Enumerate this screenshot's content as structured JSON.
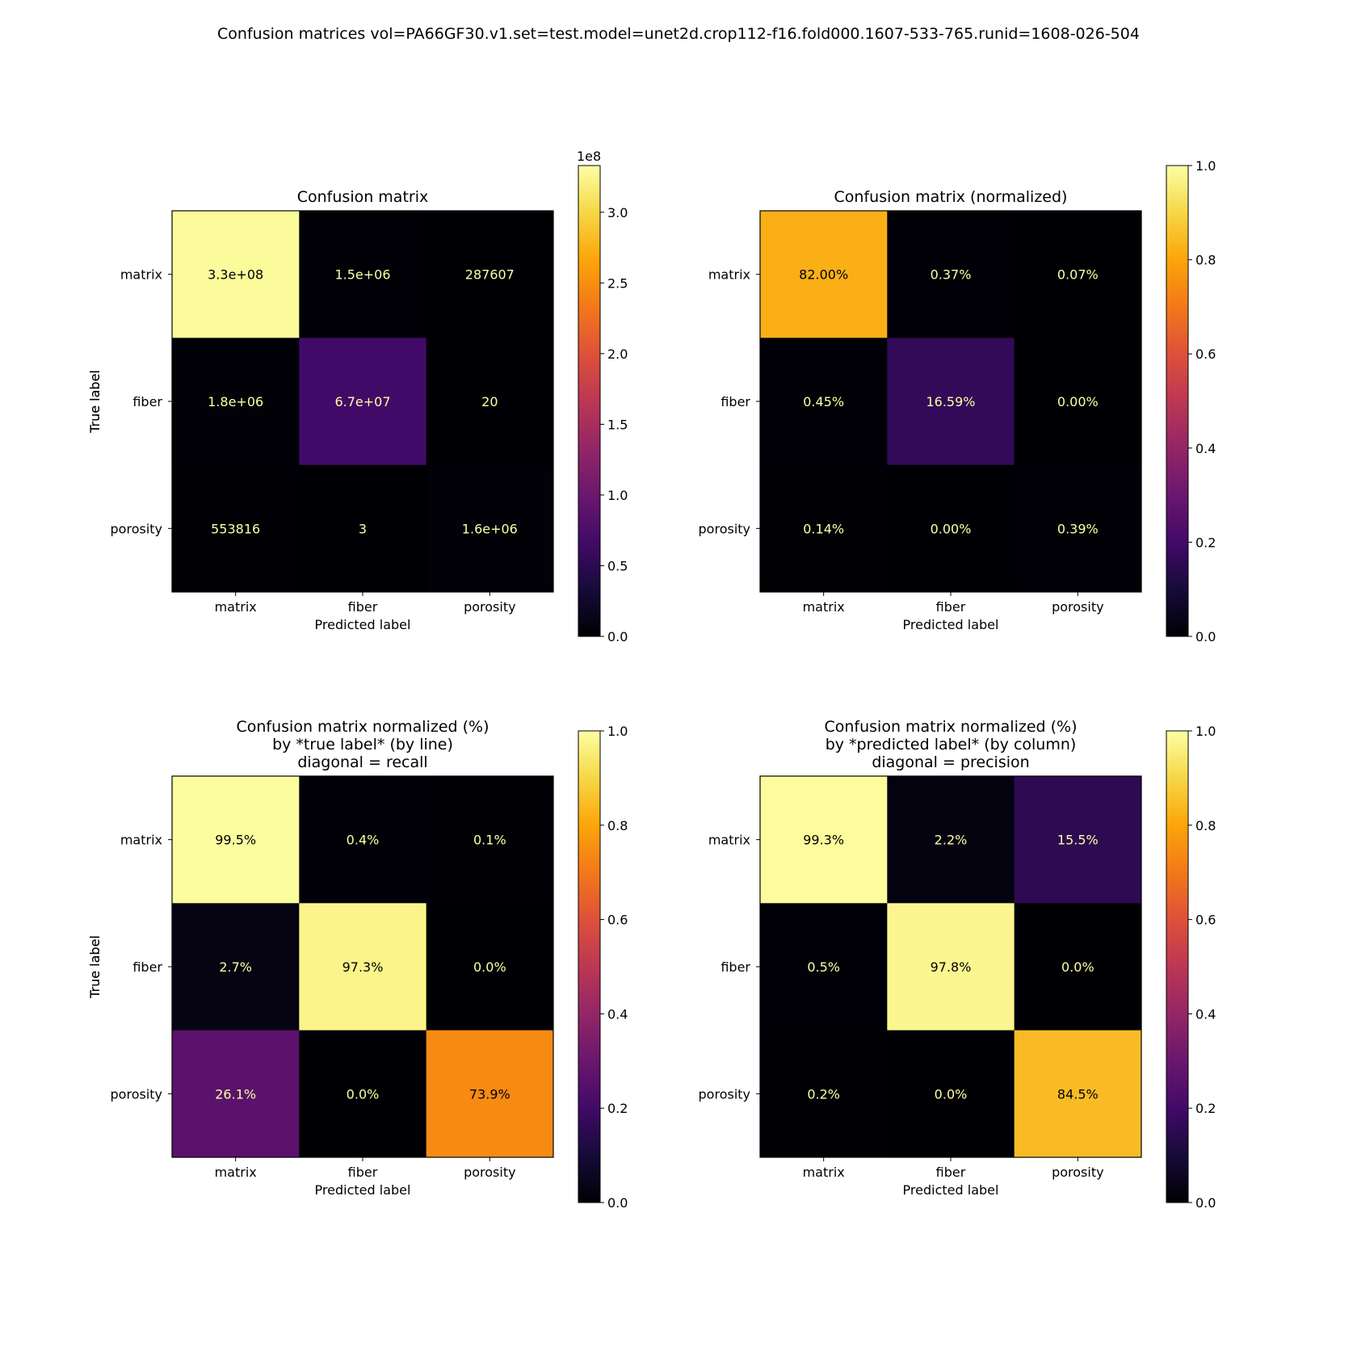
{
  "figure": {
    "suptitle": "Confusion matrices vol=PA66GF30.v1.set=test.model=unet2d.crop112-f16.fold000.1607-533-765.runid=1608-026-504"
  },
  "colormap": {
    "name": "inferno",
    "stops": [
      "#000004",
      "#160b39",
      "#420a68",
      "#6a176e",
      "#932667",
      "#bc3754",
      "#dd513a",
      "#f37819",
      "#fca50a",
      "#f6d746",
      "#fcffa4"
    ]
  },
  "chart_data": [
    {
      "type": "heatmap",
      "title": "Confusion matrix",
      "xlabel": "Predicted label",
      "ylabel": "True label",
      "x_categories": [
        "matrix",
        "fiber",
        "porosity"
      ],
      "y_categories": [
        "matrix",
        "fiber",
        "porosity"
      ],
      "values": [
        [
          330000000,
          1500000,
          287607
        ],
        [
          1800000,
          67000000,
          20
        ],
        [
          553816,
          3,
          1600000
        ]
      ],
      "cell_labels": [
        [
          "3.3e+08",
          "1.5e+06",
          "287607"
        ],
        [
          "1.8e+06",
          "6.7e+07",
          "20"
        ],
        [
          "553816",
          "3",
          "1.6e+06"
        ]
      ],
      "vmin": 0,
      "vmax": 333000000,
      "colorbar": {
        "ticks": [
          0,
          50000000,
          100000000,
          150000000,
          200000000,
          250000000,
          300000000
        ],
        "tick_labels": [
          "0.0",
          "0.5",
          "1.0",
          "1.5",
          "2.0",
          "2.5",
          "3.0"
        ],
        "offset_label": "1e8"
      }
    },
    {
      "type": "heatmap",
      "title": "Confusion matrix (normalized)",
      "xlabel": "Predicted label",
      "ylabel": "True label",
      "x_categories": [
        "matrix",
        "fiber",
        "porosity"
      ],
      "y_categories": [
        "matrix",
        "fiber",
        "porosity"
      ],
      "values": [
        [
          0.82,
          0.0037,
          0.0007
        ],
        [
          0.0045,
          0.1659,
          0.0
        ],
        [
          0.0014,
          0.0,
          0.0039
        ]
      ],
      "cell_labels": [
        [
          "82.00%",
          "0.37%",
          "0.07%"
        ],
        [
          "0.45%",
          "16.59%",
          "0.00%"
        ],
        [
          "0.14%",
          "0.00%",
          "0.39%"
        ]
      ],
      "vmin": 0,
      "vmax": 1,
      "colorbar": {
        "ticks": [
          0,
          0.2,
          0.4,
          0.6,
          0.8,
          1.0
        ],
        "tick_labels": [
          "0.0",
          "0.2",
          "0.4",
          "0.6",
          "0.8",
          "1.0"
        ],
        "offset_label": ""
      }
    },
    {
      "type": "heatmap",
      "title": "Confusion matrix normalized (%)\nby *true label* (by line)\ndiagonal = recall",
      "xlabel": "Predicted label",
      "ylabel": "True label",
      "x_categories": [
        "matrix",
        "fiber",
        "porosity"
      ],
      "y_categories": [
        "matrix",
        "fiber",
        "porosity"
      ],
      "values": [
        [
          0.995,
          0.004,
          0.001
        ],
        [
          0.027,
          0.973,
          0.0
        ],
        [
          0.261,
          0.0,
          0.739
        ]
      ],
      "cell_labels": [
        [
          "99.5%",
          "0.4%",
          "0.1%"
        ],
        [
          "2.7%",
          "97.3%",
          "0.0%"
        ],
        [
          "26.1%",
          "0.0%",
          "73.9%"
        ]
      ],
      "vmin": 0,
      "vmax": 1,
      "colorbar": {
        "ticks": [
          0,
          0.2,
          0.4,
          0.6,
          0.8,
          1.0
        ],
        "tick_labels": [
          "0.0",
          "0.2",
          "0.4",
          "0.6",
          "0.8",
          "1.0"
        ],
        "offset_label": ""
      }
    },
    {
      "type": "heatmap",
      "title": "Confusion matrix normalized (%)\nby *predicted label* (by column)\ndiagonal = precision",
      "xlabel": "Predicted label",
      "ylabel": "True label",
      "x_categories": [
        "matrix",
        "fiber",
        "porosity"
      ],
      "y_categories": [
        "matrix",
        "fiber",
        "porosity"
      ],
      "values": [
        [
          0.993,
          0.022,
          0.155
        ],
        [
          0.005,
          0.978,
          0.0
        ],
        [
          0.002,
          0.0,
          0.845
        ]
      ],
      "cell_labels": [
        [
          "99.3%",
          "2.2%",
          "15.5%"
        ],
        [
          "0.5%",
          "97.8%",
          "0.0%"
        ],
        [
          "0.2%",
          "0.0%",
          "84.5%"
        ]
      ],
      "vmin": 0,
      "vmax": 1,
      "colorbar": {
        "ticks": [
          0,
          0.2,
          0.4,
          0.6,
          0.8,
          1.0
        ],
        "tick_labels": [
          "0.0",
          "0.2",
          "0.4",
          "0.6",
          "0.8",
          "1.0"
        ],
        "offset_label": ""
      }
    }
  ]
}
